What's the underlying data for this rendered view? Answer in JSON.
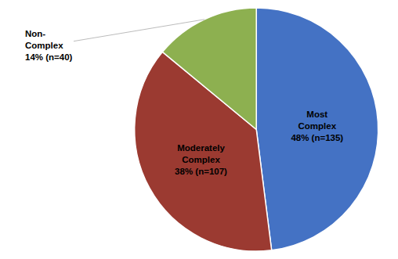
{
  "chart_data": {
    "type": "pie",
    "values": [
      48,
      38,
      14
    ],
    "value_labels": [
      "Most\nComplex\n48% (n=135)",
      "Moderately\nComplex\n38% (n=107)",
      "Non-\nComplex\n14% (n=40)"
    ],
    "colors": [
      "#4472C4",
      "#9B3A31",
      "#8DB050"
    ]
  }
}
